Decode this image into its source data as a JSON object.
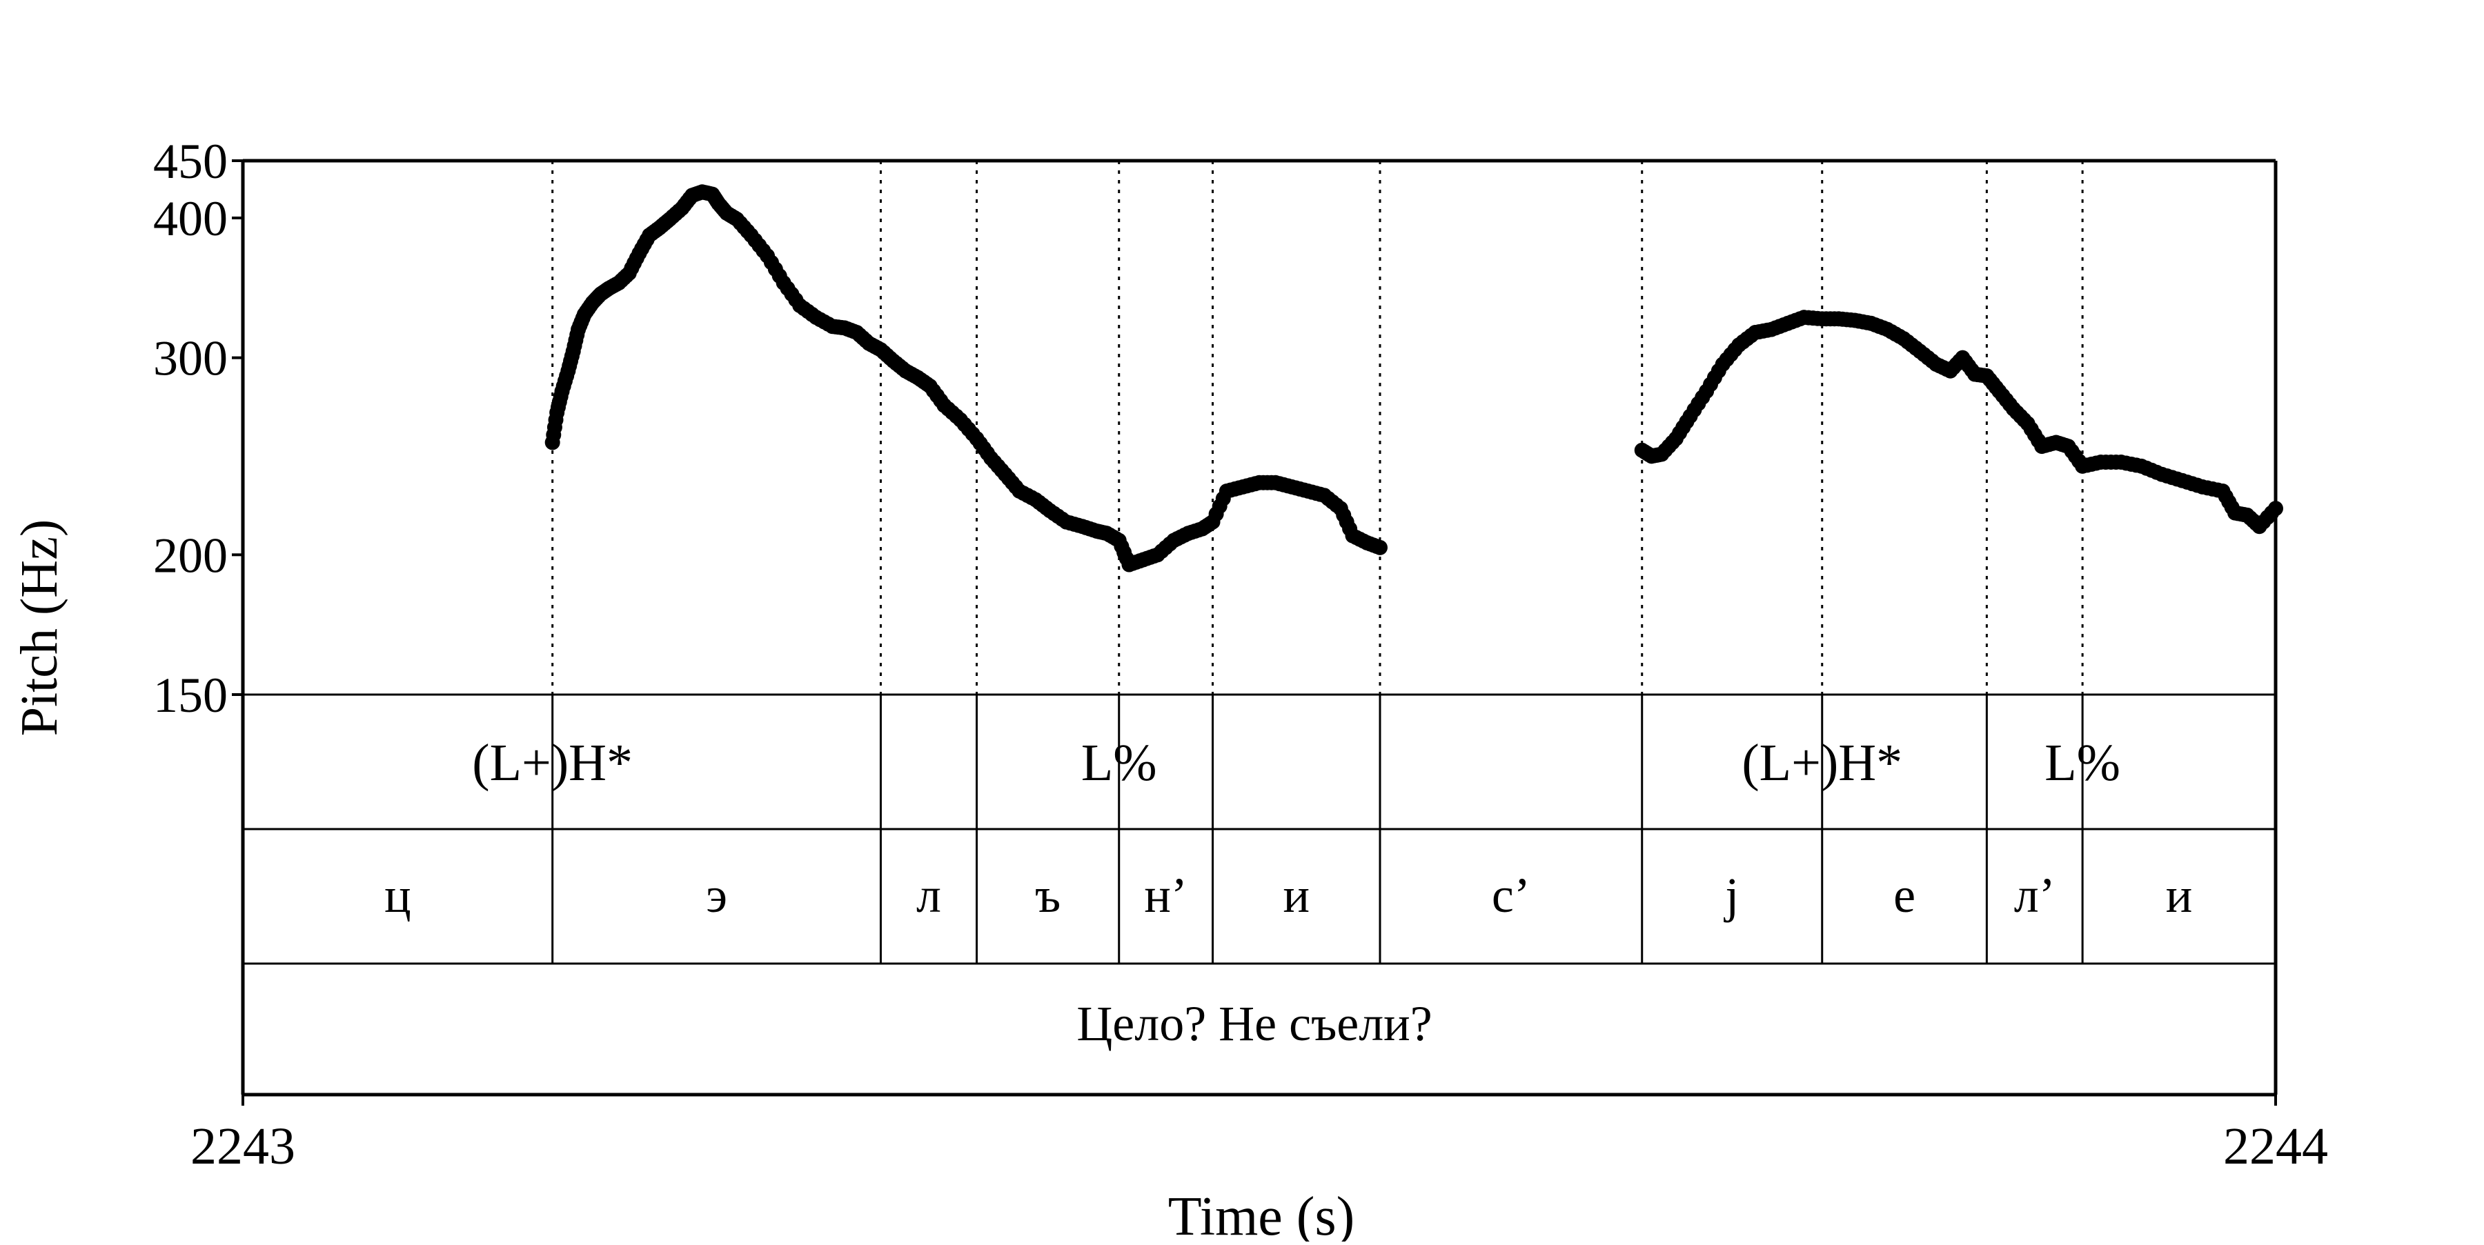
{
  "chart_data": {
    "type": "scatter",
    "title": "",
    "xlabel": "Time (s)",
    "ylabel": "Pitch (Hz)",
    "xlim": [
      2243,
      2244
    ],
    "ylim": [
      150,
      450
    ],
    "y_scale": "log",
    "xticks": [
      "2243",
      "2244"
    ],
    "yticks": [
      {
        "value": 450,
        "label": "450"
      },
      {
        "value": 400,
        "label": "400"
      },
      {
        "value": 300,
        "label": "300"
      },
      {
        "value": 200,
        "label": "200"
      },
      {
        "value": 150,
        "label": "150"
      }
    ],
    "boundaries": [
      2243.1523,
      2243.3138,
      2243.361,
      2243.431,
      2243.4771,
      2243.5594,
      2243.6883,
      2243.7769,
      2243.8579,
      2243.905
    ],
    "tiers": {
      "tones": [
        {
          "time": 2243.1523,
          "label": "(L+)H*"
        },
        {
          "time": 2243.431,
          "label": "L%"
        },
        {
          "time": 2243.7769,
          "label": "(L+)H*"
        },
        {
          "time": 2243.905,
          "label": "L%"
        }
      ],
      "segments": [
        {
          "start": 2243.0,
          "end": 2243.1523,
          "label": "ц"
        },
        {
          "start": 2243.1523,
          "end": 2243.3138,
          "label": "э"
        },
        {
          "start": 2243.3138,
          "end": 2243.361,
          "label": "л"
        },
        {
          "start": 2243.361,
          "end": 2243.431,
          "label": "ъ"
        },
        {
          "start": 2243.431,
          "end": 2243.4771,
          "label": "н’"
        },
        {
          "start": 2243.4771,
          "end": 2243.5594,
          "label": "и"
        },
        {
          "start": 2243.5594,
          "end": 2243.6883,
          "label": "с’"
        },
        {
          "start": 2243.6883,
          "end": 2243.7769,
          "label": "j"
        },
        {
          "start": 2243.7769,
          "end": 2243.8579,
          "label": "е"
        },
        {
          "start": 2243.8579,
          "end": 2243.905,
          "label": "л’"
        },
        {
          "start": 2243.905,
          "end": 2244.0,
          "label": "и"
        }
      ],
      "utterance": "Цело? Не съели?"
    },
    "series": [
      {
        "points": [
          [
            2243.1523,
            252
          ],
          [
            2243.1545,
            268
          ],
          [
            2243.157,
            280
          ],
          [
            2243.16,
            292
          ],
          [
            2243.1625,
            304
          ],
          [
            2243.165,
            318
          ],
          [
            2243.168,
            328
          ],
          [
            2243.172,
            336
          ],
          [
            2243.176,
            342
          ],
          [
            2243.18,
            346
          ],
          [
            2243.185,
            350
          ],
          [
            2243.19,
            357
          ],
          [
            2243.195,
            372
          ],
          [
            2243.2,
            386
          ],
          [
            2243.205,
            392
          ],
          [
            2243.21,
            399
          ],
          [
            2243.216,
            408
          ],
          [
            2243.221,
            419
          ],
          [
            2243.226,
            422
          ],
          [
            2243.231,
            420
          ],
          [
            2243.234,
            412
          ],
          [
            2243.238,
            404
          ],
          [
            2243.243,
            399
          ],
          [
            2243.25,
            386
          ],
          [
            2243.258,
            370
          ],
          [
            2243.266,
            350
          ],
          [
            2243.274,
            334
          ],
          [
            2243.282,
            326
          ],
          [
            2243.29,
            320
          ],
          [
            2243.296,
            319
          ],
          [
            2243.302,
            316
          ],
          [
            2243.308,
            309
          ],
          [
            2243.3138,
            305
          ],
          [
            2243.32,
            298
          ],
          [
            2243.326,
            292
          ],
          [
            2243.332,
            288
          ],
          [
            2243.338,
            283
          ],
          [
            2243.345,
            272
          ],
          [
            2243.353,
            264
          ],
          [
            2243.361,
            254
          ],
          [
            2243.368,
            244
          ],
          [
            2243.375,
            236
          ],
          [
            2243.382,
            228
          ],
          [
            2243.39,
            224
          ],
          [
            2243.397,
            219
          ],
          [
            2243.405,
            214
          ],
          [
            2243.413,
            212
          ],
          [
            2243.42,
            210
          ],
          [
            2243.425,
            209
          ],
          [
            2243.431,
            206
          ],
          [
            2243.436,
            196
          ],
          [
            2243.443,
            198
          ],
          [
            2243.45,
            200
          ],
          [
            2243.458,
            206
          ],
          [
            2243.465,
            209
          ],
          [
            2243.472,
            211
          ],
          [
            2243.4771,
            214
          ],
          [
            2243.484,
            228
          ],
          [
            2243.492,
            230
          ],
          [
            2243.5,
            232
          ],
          [
            2243.508,
            232
          ],
          [
            2243.516,
            230
          ],
          [
            2243.524,
            228
          ],
          [
            2243.532,
            226
          ],
          [
            2243.54,
            220
          ],
          [
            2243.546,
            208
          ],
          [
            2243.553,
            205
          ],
          [
            2243.5594,
            203
          ]
        ]
      },
      {
        "points": [
          [
            2243.6883,
            248
          ],
          [
            2243.693,
            245
          ],
          [
            2243.698,
            246
          ],
          [
            2243.705,
            254
          ],
          [
            2243.712,
            266
          ],
          [
            2243.72,
            280
          ],
          [
            2243.728,
            296
          ],
          [
            2243.736,
            308
          ],
          [
            2243.744,
            316
          ],
          [
            2243.752,
            318
          ],
          [
            2243.76,
            322
          ],
          [
            2243.768,
            326
          ],
          [
            2243.7769,
            325
          ],
          [
            2243.785,
            325
          ],
          [
            2243.793,
            324
          ],
          [
            2243.801,
            322
          ],
          [
            2243.809,
            318
          ],
          [
            2243.817,
            312
          ],
          [
            2243.825,
            304
          ],
          [
            2243.833,
            296
          ],
          [
            2243.84,
            292
          ],
          [
            2243.846,
            300
          ],
          [
            2243.852,
            290
          ],
          [
            2243.8579,
            289
          ],
          [
            2243.864,
            280
          ],
          [
            2243.871,
            270
          ],
          [
            2243.878,
            262
          ],
          [
            2243.885,
            250
          ],
          [
            2243.892,
            252
          ],
          [
            2243.898,
            250
          ],
          [
            2243.905,
            240
          ],
          [
            2243.914,
            242
          ],
          [
            2243.924,
            242
          ],
          [
            2243.934,
            240
          ],
          [
            2243.944,
            236
          ],
          [
            2243.954,
            233
          ],
          [
            2243.964,
            230
          ],
          [
            2243.974,
            228
          ],
          [
            2243.98,
            218
          ],
          [
            2243.986,
            217
          ],
          [
            2243.992,
            212
          ],
          [
            2244.0,
            220
          ]
        ]
      }
    ]
  }
}
